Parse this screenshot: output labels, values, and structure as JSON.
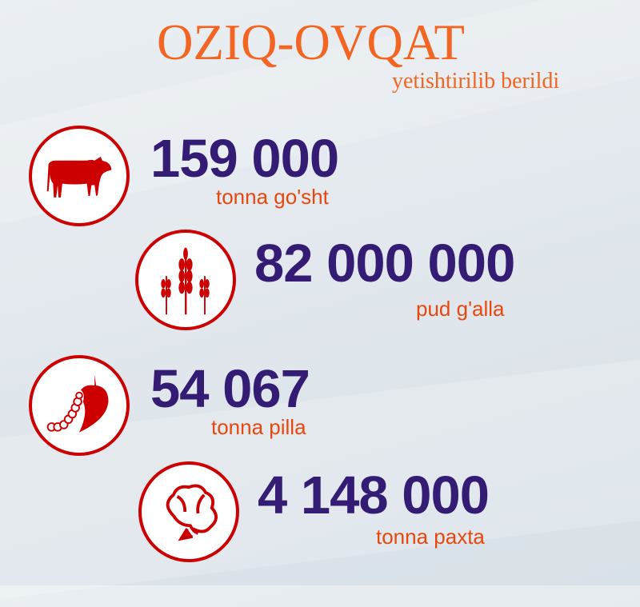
{
  "header": {
    "title": "OZIQ-OVQAT",
    "subtitle": "yetishtirilib berildi"
  },
  "colors": {
    "title": "#f26522",
    "number": "#341c74",
    "label": "#e8470e",
    "icon": "#cc0000"
  },
  "stats": [
    {
      "value": "159 000",
      "label": "tonna go'sht",
      "icon": "cow-icon"
    },
    {
      "value": "82 000 000",
      "label": "pud g'alla",
      "icon": "wheat-icon"
    },
    {
      "value": "54 067",
      "label": "tonna pilla",
      "icon": "silkworm-leaf-icon"
    },
    {
      "value": "4 148 000",
      "label": "tonna paxta",
      "icon": "cotton-icon"
    }
  ]
}
